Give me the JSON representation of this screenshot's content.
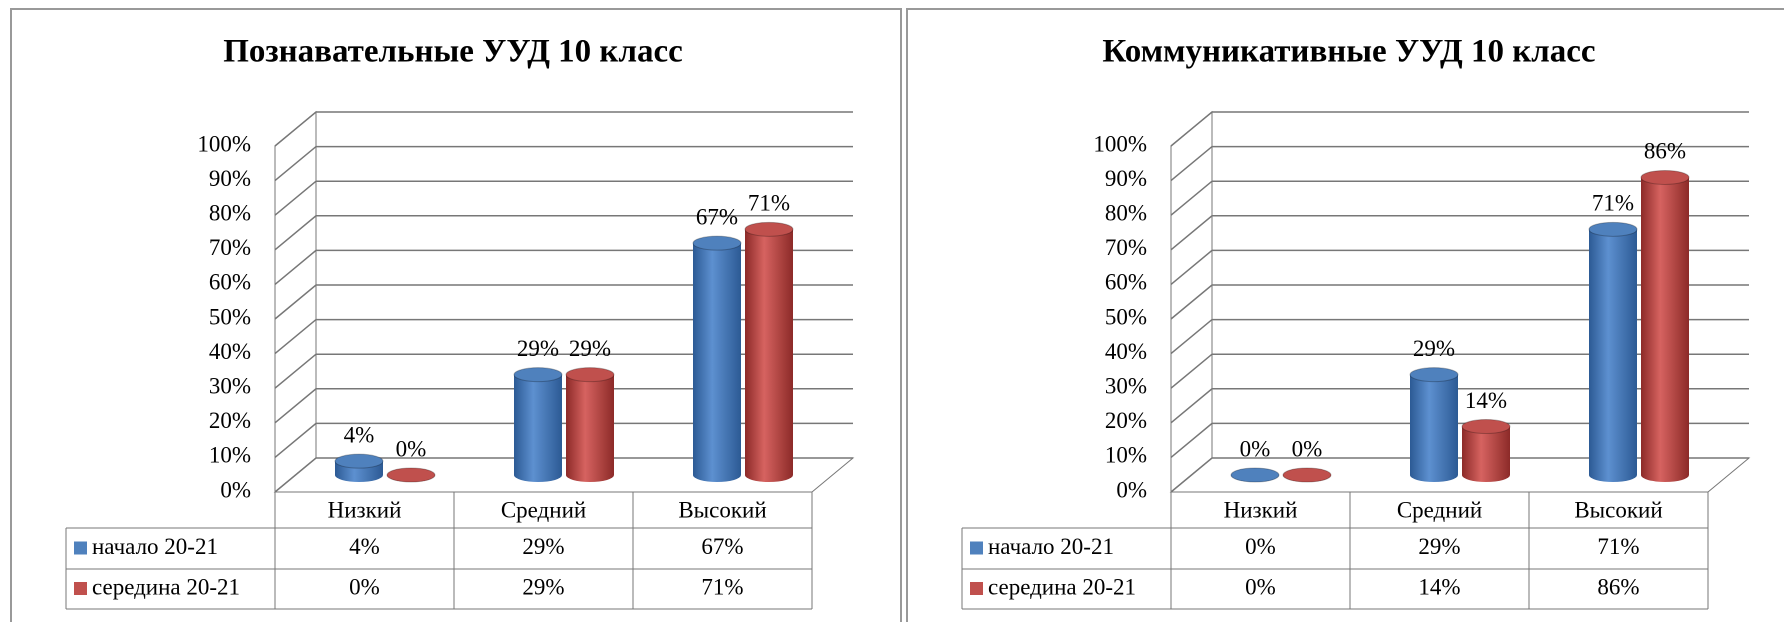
{
  "chart_data": [
    {
      "type": "bar",
      "title": "Познавательные УУД 10 класс",
      "categories": [
        "Низкий",
        "Средний",
        "Высокий"
      ],
      "series": [
        {
          "name": "начало 20-21",
          "color": "#4f81bd",
          "values": [
            4,
            29,
            67
          ],
          "value_labels": [
            "4%",
            "29%",
            "67%"
          ]
        },
        {
          "name": "середина 20-21",
          "color": "#c0504d",
          "values": [
            0,
            29,
            71
          ],
          "value_labels": [
            "0%",
            "29%",
            "71%"
          ]
        }
      ],
      "ylim": [
        0,
        100
      ],
      "yticks": [
        {
          "value": 0,
          "label": "0%"
        },
        {
          "value": 10,
          "label": "10%"
        },
        {
          "value": 20,
          "label": "20%"
        },
        {
          "value": 30,
          "label": "30%"
        },
        {
          "value": 40,
          "label": "40%"
        },
        {
          "value": 50,
          "label": "50%"
        },
        {
          "value": 60,
          "label": "60%"
        },
        {
          "value": 70,
          "label": "70%"
        },
        {
          "value": 80,
          "label": "80%"
        },
        {
          "value": 90,
          "label": "90%"
        },
        {
          "value": 100,
          "label": "100%"
        }
      ],
      "grid": true
    },
    {
      "type": "bar",
      "title": "Коммуникативные УУД 10 класс",
      "categories": [
        "Низкий",
        "Средний",
        "Высокий"
      ],
      "series": [
        {
          "name": "начало 20-21",
          "color": "#4f81bd",
          "values": [
            0,
            29,
            71
          ],
          "value_labels": [
            "0%",
            "29%",
            "71%"
          ]
        },
        {
          "name": "середина 20-21",
          "color": "#c0504d",
          "values": [
            0,
            14,
            86
          ],
          "value_labels": [
            "0%",
            "14%",
            "86%"
          ]
        }
      ],
      "ylim": [
        0,
        100
      ],
      "yticks": [
        {
          "value": 0,
          "label": "0%"
        },
        {
          "value": 10,
          "label": "10%"
        },
        {
          "value": 20,
          "label": "20%"
        },
        {
          "value": 30,
          "label": "30%"
        },
        {
          "value": 40,
          "label": "40%"
        },
        {
          "value": 50,
          "label": "50%"
        },
        {
          "value": 60,
          "label": "60%"
        },
        {
          "value": 70,
          "label": "70%"
        },
        {
          "value": 80,
          "label": "80%"
        },
        {
          "value": 90,
          "label": "90%"
        },
        {
          "value": 100,
          "label": "100%"
        }
      ],
      "grid": true
    }
  ]
}
